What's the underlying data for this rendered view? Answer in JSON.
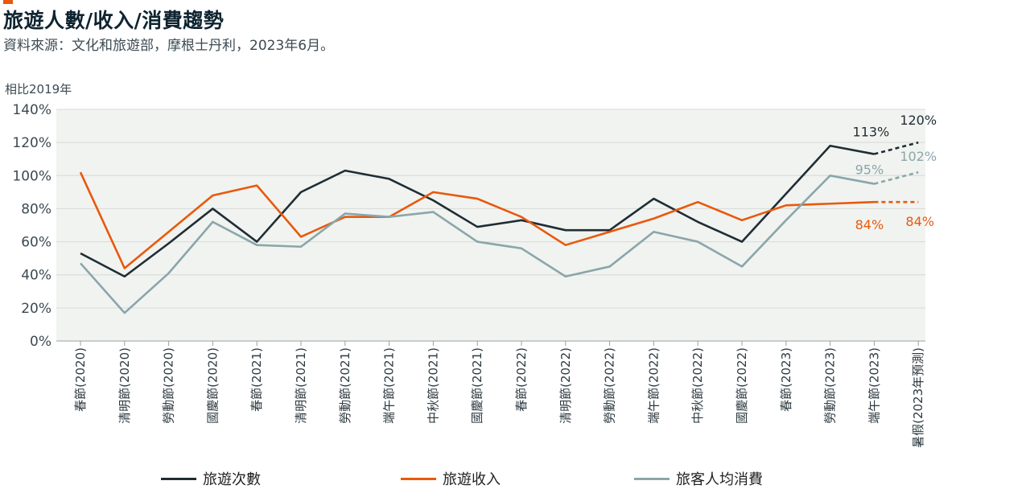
{
  "title": "旅遊人數/收入/消費趨勢",
  "subtitle": "資料來源：文化和旅遊部，摩根士丹利，2023年6月。",
  "colors": {
    "accent": "#e8590c",
    "visits": "#1f2d35",
    "income": "#e8590c",
    "spend": "#8aa6aa",
    "plot_bg": "#f1f3f0",
    "grid": "#d6dad6"
  },
  "chart_data": {
    "type": "line",
    "ylabel": "相比2019年",
    "ylim": [
      0,
      140
    ],
    "yticks": [
      "0%",
      "20%",
      "40%",
      "60%",
      "80%",
      "100%",
      "120%",
      "140%"
    ],
    "grid": true,
    "legend_position": "bottom",
    "categories": [
      "春節(2020)",
      "清明節(2020)",
      "勞動節(2020)",
      "國慶節(2020)",
      "春節(2021)",
      "清明節(2021)",
      "勞動節(2021)",
      "端午節(2021)",
      "中秋節(2021)",
      "國慶節(2021)",
      "春節(2022)",
      "清明節(2022)",
      "勞動節(2022)",
      "端午節(2022)",
      "中秋節(2022)",
      "國慶節(2022)",
      "春節(2023)",
      "勞動節(2023)",
      "端午節(2023)",
      "暑假(2023年預測)"
    ],
    "series": [
      {
        "name": "旅遊次數",
        "color_key": "visits",
        "values": [
          53,
          39,
          59,
          80,
          60,
          90,
          103,
          98,
          85,
          69,
          73,
          67,
          67,
          86,
          72,
          60,
          89,
          118,
          113,
          120
        ],
        "forecast_from_index": 18,
        "labels": [
          {
            "index": 18,
            "text": "113%"
          },
          {
            "index": 19,
            "text": "120%"
          }
        ]
      },
      {
        "name": "旅遊收入",
        "color_key": "income",
        "values": [
          102,
          44,
          66,
          88,
          94,
          63,
          75,
          75,
          90,
          86,
          75,
          58,
          66,
          74,
          84,
          73,
          82,
          83,
          84,
          84
        ],
        "forecast_from_index": 18,
        "labels": [
          {
            "index": 18,
            "text": "84%"
          },
          {
            "index": 19,
            "text": "84%"
          }
        ]
      },
      {
        "name": "旅客人均消費",
        "color_key": "spend",
        "values": [
          47,
          17,
          41,
          72,
          58,
          57,
          77,
          75,
          78,
          60,
          56,
          39,
          45,
          66,
          60,
          45,
          73,
          100,
          95,
          102
        ],
        "forecast_from_index": 18,
        "labels": [
          {
            "index": 18,
            "text": "95%"
          },
          {
            "index": 19,
            "text": "102%"
          }
        ]
      }
    ]
  },
  "legend": [
    {
      "label": "旅遊次數",
      "color_key": "visits"
    },
    {
      "label": "旅遊收入",
      "color_key": "income"
    },
    {
      "label": "旅客人均消費",
      "color_key": "spend"
    }
  ]
}
